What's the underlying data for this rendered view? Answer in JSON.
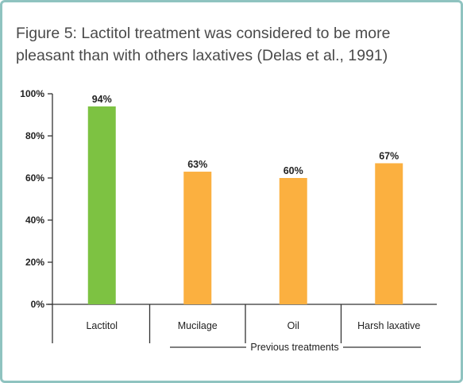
{
  "title": "Figure 5:  Lactitol treatment was considered to be more pleasant than with others laxatives  (Delas et al., 1991)",
  "colors": {
    "lactitol": "#7dc242",
    "others": "#fbb040",
    "frame": "#8fc3c0",
    "axis": "#333333"
  },
  "chart_data": {
    "type": "bar",
    "title": "Figure 5:  Lactitol treatment was considered to be more pleasant than with others laxatives  (Delas et al., 1991)",
    "categories": [
      "Lactitol",
      "Mucilage",
      "Oil",
      "Harsh laxative"
    ],
    "values": [
      94,
      63,
      60,
      67
    ],
    "data_labels": [
      "94%",
      "63%",
      "60%",
      "67%"
    ],
    "yticks": [
      0,
      20,
      40,
      60,
      80,
      100
    ],
    "ytick_labels": [
      "0%",
      "20%",
      "40%",
      "60%",
      "80%",
      "100%"
    ],
    "ylim": [
      0,
      100
    ],
    "xlabel": "",
    "ylabel": "",
    "group_label": "Previous treatments",
    "grid": false,
    "legend": "none"
  }
}
